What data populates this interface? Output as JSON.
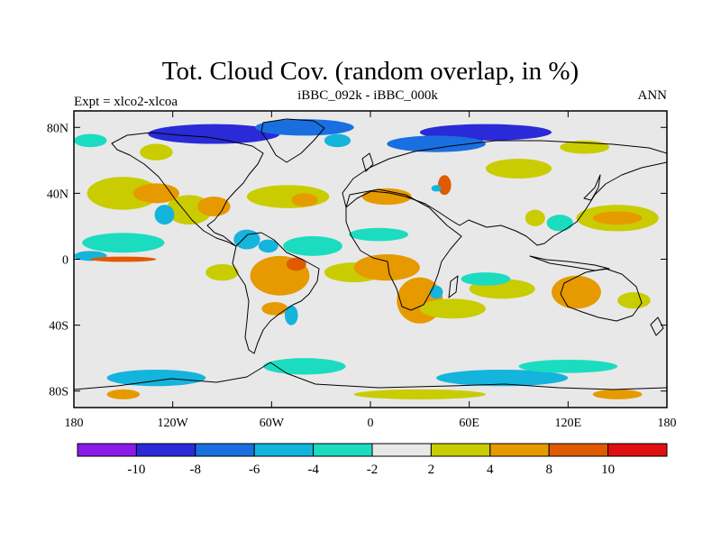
{
  "chart_data": {
    "type": "heatmap",
    "title": "Tot. Cloud Cov. (random overlap, in %)",
    "left_label": "Expt = xlco2-xlcoa",
    "center_label": "iBBC_092k - iBBC_000k",
    "right_label": "ANN",
    "xlim": [
      -180,
      180
    ],
    "ylim": [
      -90,
      90
    ],
    "x_ticks": [
      {
        "value": -180,
        "label": "180"
      },
      {
        "value": -120,
        "label": "120W"
      },
      {
        "value": -60,
        "label": "60W"
      },
      {
        "value": 0,
        "label": "0"
      },
      {
        "value": 60,
        "label": "60E"
      },
      {
        "value": 120,
        "label": "120E"
      },
      {
        "value": 180,
        "label": "180"
      }
    ],
    "y_ticks": [
      {
        "value": 80,
        "label": "80N"
      },
      {
        "value": 40,
        "label": "40N"
      },
      {
        "value": 0,
        "label": "0"
      },
      {
        "value": -40,
        "label": "40S"
      },
      {
        "value": -80,
        "label": "80S"
      }
    ],
    "colorbar": {
      "boundaries": [
        -10,
        -8,
        -6,
        -4,
        -2,
        2,
        4,
        8,
        10
      ],
      "labels": [
        "-10",
        "-8",
        "-6",
        "-4",
        "-2",
        "2",
        "4",
        "8",
        "10"
      ],
      "colors": [
        "#8a1be8",
        "#2a2ad8",
        "#1a6fe0",
        "#14b4dc",
        "#1cdcc0",
        "#e8e8e8",
        "#c9cc00",
        "#e69a00",
        "#e05a00",
        "#e01010"
      ]
    },
    "regions": [
      {
        "value": 3,
        "lon": -150,
        "lat": 40,
        "rlon": 22,
        "rlat": 10
      },
      {
        "value": 3,
        "lon": -110,
        "lat": 30,
        "rlon": 14,
        "rlat": 9
      },
      {
        "value": 5,
        "lon": -130,
        "lat": 40,
        "rlon": 14,
        "rlat": 6
      },
      {
        "value": 5,
        "lon": -95,
        "lat": 32,
        "rlon": 10,
        "rlat": 6
      },
      {
        "value": -5,
        "lon": -125,
        "lat": 27,
        "rlon": 6,
        "rlat": 6
      },
      {
        "value": 3,
        "lon": -50,
        "lat": 38,
        "rlon": 25,
        "rlat": 7
      },
      {
        "value": 5,
        "lon": -40,
        "lat": 36,
        "rlon": 8,
        "rlat": 4
      },
      {
        "value": -3,
        "lon": -150,
        "lat": 10,
        "rlon": 25,
        "rlat": 6
      },
      {
        "value": -5,
        "lon": -170,
        "lat": 2,
        "rlon": 10,
        "rlat": 3
      },
      {
        "value": 9,
        "lon": -150,
        "lat": 0,
        "rlon": 20,
        "rlat": 1.6
      },
      {
        "value": 3,
        "lon": -90,
        "lat": -8,
        "rlon": 10,
        "rlat": 5
      },
      {
        "value": -5,
        "lon": -75,
        "lat": 12,
        "rlon": 8,
        "rlat": 6
      },
      {
        "value": -3,
        "lon": -35,
        "lat": 8,
        "rlon": 18,
        "rlat": 6
      },
      {
        "value": -5,
        "lon": -62,
        "lat": 8,
        "rlon": 6,
        "rlat": 4
      },
      {
        "value": 5,
        "lon": -55,
        "lat": -10,
        "rlon": 18,
        "rlat": 12
      },
      {
        "value": 9,
        "lon": -45,
        "lat": -3,
        "rlon": 6,
        "rlat": 4
      },
      {
        "value": 5,
        "lon": -58,
        "lat": -30,
        "rlon": 8,
        "rlat": 4
      },
      {
        "value": -5,
        "lon": -48,
        "lat": -34,
        "rlon": 4,
        "rlat": 6
      },
      {
        "value": 3,
        "lon": -10,
        "lat": -8,
        "rlon": 18,
        "rlat": 6
      },
      {
        "value": 5,
        "lon": 10,
        "lat": -5,
        "rlon": 20,
        "rlat": 8
      },
      {
        "value": 5,
        "lon": 30,
        "lat": -25,
        "rlon": 14,
        "rlat": 14
      },
      {
        "value": -5,
        "lon": 40,
        "lat": -20,
        "rlon": 4,
        "rlat": 4
      },
      {
        "value": 3,
        "lon": 50,
        "lat": -30,
        "rlon": 20,
        "rlat": 6
      },
      {
        "value": 3,
        "lon": 80,
        "lat": -18,
        "rlon": 20,
        "rlat": 6
      },
      {
        "value": -3,
        "lon": 70,
        "lat": -12,
        "rlon": 15,
        "rlat": 4
      },
      {
        "value": 5,
        "lon": 125,
        "lat": -20,
        "rlon": 15,
        "rlat": 10
      },
      {
        "value": 3,
        "lon": 160,
        "lat": -25,
        "rlon": 10,
        "rlat": 5
      },
      {
        "value": 3,
        "lon": 150,
        "lat": 25,
        "rlon": 25,
        "rlat": 8
      },
      {
        "value": 5,
        "lon": 150,
        "lat": 25,
        "rlon": 15,
        "rlat": 4
      },
      {
        "value": 3,
        "lon": 100,
        "lat": 25,
        "rlon": 6,
        "rlat": 5
      },
      {
        "value": 3,
        "lon": 90,
        "lat": 55,
        "rlon": 20,
        "rlat": 6
      },
      {
        "value": 5,
        "lon": 10,
        "lat": 38,
        "rlon": 15,
        "rlat": 5
      },
      {
        "value": 9,
        "lon": 45,
        "lat": 45,
        "rlon": 4,
        "rlat": 6
      },
      {
        "value": -5,
        "lon": 40,
        "lat": 43,
        "rlon": 3,
        "rlat": 2
      },
      {
        "value": -3,
        "lon": 5,
        "lat": 15,
        "rlon": 18,
        "rlat": 4
      },
      {
        "value": -3,
        "lon": 115,
        "lat": 22,
        "rlon": 8,
        "rlat": 5
      },
      {
        "value": -9,
        "lon": -95,
        "lat": 76,
        "rlon": 40,
        "rlat": 6
      },
      {
        "value": -7,
        "lon": -40,
        "lat": 80,
        "rlon": 30,
        "rlat": 5
      },
      {
        "value": -9,
        "lon": 70,
        "lat": 77,
        "rlon": 40,
        "rlat": 5
      },
      {
        "value": -7,
        "lon": 40,
        "lat": 70,
        "rlon": 30,
        "rlat": 5
      },
      {
        "value": -3,
        "lon": -170,
        "lat": 72,
        "rlon": 10,
        "rlat": 4
      },
      {
        "value": 3,
        "lon": -130,
        "lat": 65,
        "rlon": 10,
        "rlat": 5
      },
      {
        "value": -5,
        "lon": -20,
        "lat": 72,
        "rlon": 8,
        "rlat": 4
      },
      {
        "value": 3,
        "lon": 130,
        "lat": 68,
        "rlon": 15,
        "rlat": 4
      },
      {
        "value": -3,
        "lon": -40,
        "lat": -65,
        "rlon": 25,
        "rlat": 5
      },
      {
        "value": -5,
        "lon": -130,
        "lat": -72,
        "rlon": 30,
        "rlat": 5
      },
      {
        "value": -5,
        "lon": 80,
        "lat": -72,
        "rlon": 40,
        "rlat": 5
      },
      {
        "value": 5,
        "lon": -150,
        "lat": -82,
        "rlon": 10,
        "rlat": 3
      },
      {
        "value": 5,
        "lon": 150,
        "lat": -82,
        "rlon": 15,
        "rlat": 3
      },
      {
        "value": 3,
        "lon": 30,
        "lat": -82,
        "rlon": 40,
        "rlat": 3
      },
      {
        "value": -3,
        "lon": 120,
        "lat": -65,
        "rlon": 30,
        "rlat": 4
      }
    ]
  }
}
